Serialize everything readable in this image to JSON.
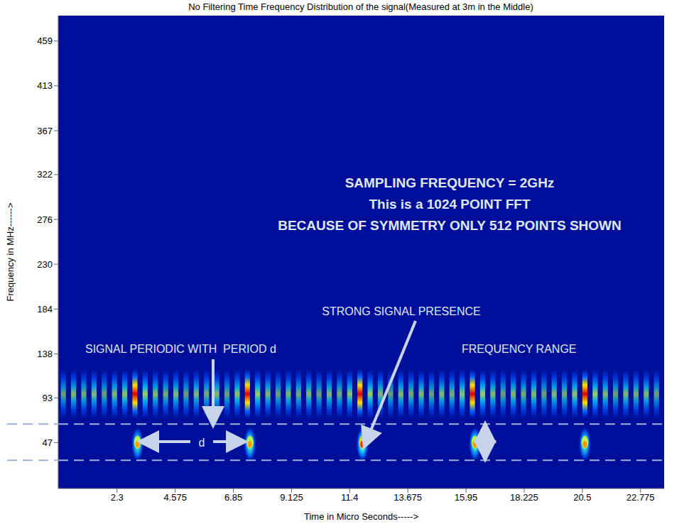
{
  "chart_data": {
    "type": "spectrogram",
    "title": "No Filtering Time Frequency Distribution of the signal(Measured at 3m in the Middle)",
    "x_label": "Time in Micro Seconds----->",
    "y_label": "Frequency in MHz------>",
    "xlim": [
      0,
      23.7
    ],
    "xticks": [
      2.3,
      4.575,
      6.85,
      9.125,
      11.4,
      13.675,
      15.95,
      18.225,
      20.5,
      22.775
    ],
    "ylim": [
      0,
      485
    ],
    "yticks": [
      47,
      93,
      138,
      184,
      230,
      276,
      322,
      367,
      413,
      459
    ],
    "clim": [
      0,
      1
    ],
    "band": {
      "freq_range": [
        72,
        122
      ],
      "duration": 0.2,
      "times": [
        0.2,
        0.6,
        1.0,
        1.4,
        1.8,
        2.2,
        2.6,
        3.0,
        3.4,
        3.8,
        4.2,
        4.6,
        5.0,
        5.4,
        5.8,
        6.2,
        6.6,
        7.0,
        7.4,
        7.8,
        8.2,
        8.6,
        9.0,
        9.4,
        9.8,
        10.2,
        10.6,
        11.0,
        11.4,
        11.8,
        12.2,
        12.6,
        13.0,
        13.4,
        13.8,
        14.2,
        14.6,
        15.0,
        15.4,
        15.8,
        16.2,
        16.6,
        17.0,
        17.4,
        17.8,
        18.2,
        18.6,
        19.0,
        19.4,
        19.8,
        20.2,
        20.6,
        21.0,
        21.4,
        21.8,
        22.2,
        22.6,
        23.0,
        23.4
      ],
      "values": [
        0.6,
        0.7,
        0.65,
        0.7,
        0.6,
        0.7,
        0.75,
        1.0,
        0.8,
        0.7,
        0.65,
        0.7,
        0.6,
        0.7,
        0.65,
        0.7,
        0.6,
        0.75,
        1.0,
        0.8,
        0.7,
        0.6,
        0.7,
        0.65,
        0.7,
        0.6,
        0.7,
        0.65,
        0.75,
        1.0,
        0.8,
        0.7,
        0.6,
        0.7,
        0.65,
        0.7,
        0.6,
        0.7,
        0.65,
        0.75,
        1.0,
        0.8,
        0.7,
        0.6,
        0.7,
        0.65,
        0.7,
        0.6,
        0.7,
        0.65,
        0.75,
        1.0,
        0.8,
        0.7,
        0.6,
        0.7,
        0.65,
        0.7,
        0.6
      ]
    },
    "bursts": {
      "freq_range": [
        29,
        66
      ],
      "duration": 0.5,
      "times": [
        3.1,
        7.5,
        11.9,
        16.3,
        20.6
      ],
      "values": [
        0.8,
        0.85,
        0.95,
        0.85,
        0.8
      ]
    },
    "annotations": [
      "SAMPLING FREQUENCY = 2GHz",
      "This is a 1024 POINT FFT",
      "BECAUSE OF SYMMETRY ONLY 512 POINTS SHOWN",
      "STRONG SIGNAL PRESENCE",
      "SIGNAL PERIODIC WITH  PERIOD d",
      "FREQUENCY RANGE",
      "d"
    ]
  }
}
